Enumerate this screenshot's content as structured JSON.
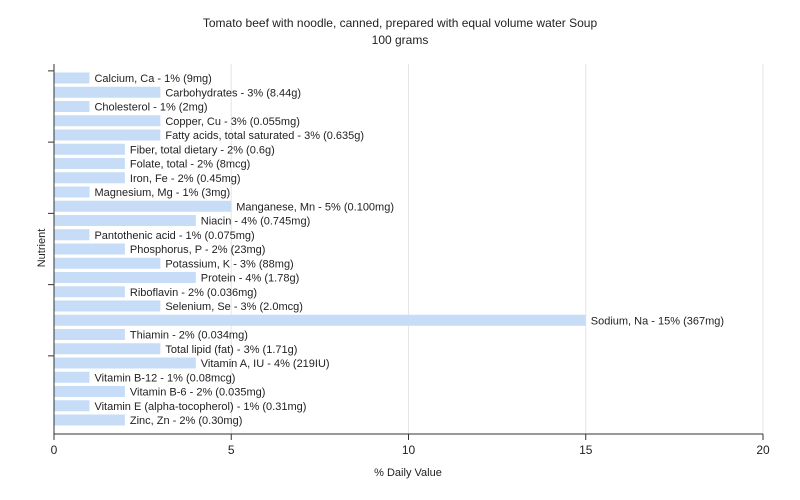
{
  "chart_data": {
    "type": "bar",
    "orientation": "horizontal",
    "title": "Tomato beef with noodle, canned, prepared with equal volume water Soup",
    "subtitle": "100 grams",
    "xlabel": "% Daily Value",
    "ylabel": "Nutrient",
    "xlim": [
      0,
      20
    ],
    "x_ticks": [
      0,
      5,
      10,
      15,
      20
    ],
    "grid": "vertical",
    "legend": "none",
    "bar_color": "#c6dcf7",
    "categories": [
      "Calcium, Ca",
      "Carbohydrates",
      "Cholesterol",
      "Copper, Cu",
      "Fatty acids, total saturated",
      "Fiber, total dietary",
      "Folate, total",
      "Iron, Fe",
      "Magnesium, Mg",
      "Manganese, Mn",
      "Niacin",
      "Pantothenic acid",
      "Phosphorus, P",
      "Potassium, K",
      "Protein",
      "Riboflavin",
      "Selenium, Se",
      "Sodium, Na",
      "Thiamin",
      "Total lipid (fat)",
      "Vitamin A, IU",
      "Vitamin B-12",
      "Vitamin B-6",
      "Vitamin E (alpha-tocopherol)",
      "Zinc, Zn"
    ],
    "values": [
      1,
      3,
      1,
      3,
      3,
      2,
      2,
      2,
      1,
      5,
      4,
      1,
      2,
      3,
      4,
      2,
      3,
      15,
      2,
      3,
      4,
      1,
      2,
      1,
      2
    ],
    "labels": [
      "Calcium, Ca - 1% (9mg)",
      "Carbohydrates - 3% (8.44g)",
      "Cholesterol - 1% (2mg)",
      "Copper, Cu - 3% (0.055mg)",
      "Fatty acids, total saturated - 3% (0.635g)",
      "Fiber, total dietary - 2% (0.6g)",
      "Folate, total - 2% (8mcg)",
      "Iron, Fe - 2% (0.45mg)",
      "Magnesium, Mg - 1% (3mg)",
      "Manganese, Mn - 5% (0.100mg)",
      "Niacin - 4% (0.745mg)",
      "Pantothenic acid - 1% (0.075mg)",
      "Phosphorus, P - 2% (23mg)",
      "Potassium, K - 3% (88mg)",
      "Protein - 4% (1.78g)",
      "Riboflavin - 2% (0.036mg)",
      "Selenium, Se - 3% (2.0mcg)",
      "Sodium, Na - 15% (367mg)",
      "Thiamin - 2% (0.034mg)",
      "Total lipid (fat) - 3% (1.71g)",
      "Vitamin A, IU - 4% (219IU)",
      "Vitamin B-12 - 1% (0.08mcg)",
      "Vitamin B-6 - 2% (0.035mg)",
      "Vitamin E (alpha-tocopherol) - 1% (0.31mg)",
      "Zinc, Zn - 2% (0.30mg)"
    ]
  }
}
